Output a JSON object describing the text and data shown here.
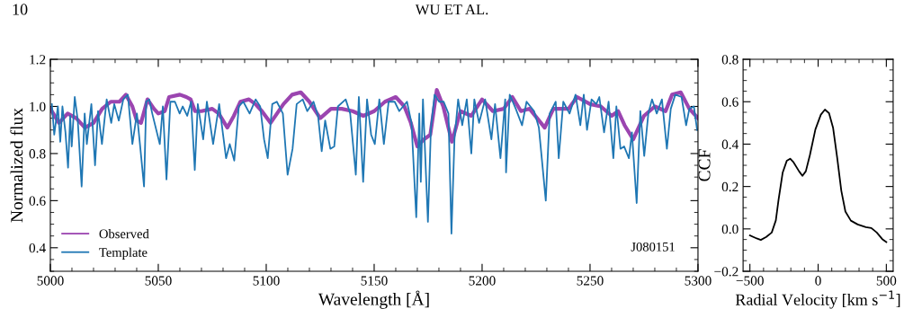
{
  "chart_data": [
    {
      "type": "line",
      "xlabel": "Wavelength [Å]",
      "ylabel": "Normalized flux",
      "annotations": [
        "10",
        "WU ET AL.",
        "J080151"
      ],
      "xlim": [
        5000,
        5300
      ],
      "xticks": [
        5000,
        5050,
        5100,
        5150,
        5200,
        5250,
        5300
      ],
      "ylim": [
        0.3,
        1.2
      ],
      "yticks": [
        0.4,
        0.6,
        0.8,
        {
          "value": 1.0,
          "label": "1.0"
        },
        1.2
      ],
      "legend": "bottom left",
      "grid": false,
      "series": [
        {
          "name": "Observed",
          "color": "#9b45b0",
          "x": [
            5000,
            5004,
            5008,
            5012,
            5016,
            5020,
            5024,
            5028,
            5032,
            5035,
            5038,
            5040,
            5042,
            5045,
            5048,
            5050,
            5053,
            5055,
            5060,
            5063,
            5065,
            5067,
            5070,
            5075,
            5078,
            5082,
            5085,
            5088,
            5092,
            5095,
            5098,
            5102,
            5105,
            5108,
            5112,
            5116,
            5120,
            5125,
            5130,
            5135,
            5140,
            5145,
            5150,
            5155,
            5160,
            5164,
            5167,
            5170,
            5173,
            5176,
            5179,
            5182,
            5186,
            5190,
            5195,
            5200,
            5205,
            5210,
            5214,
            5218,
            5222,
            5229,
            5233,
            5240,
            5244,
            5250,
            5255,
            5260,
            5263,
            5266,
            5270,
            5275,
            5280,
            5285,
            5288,
            5292,
            5296,
            5300
          ],
          "values": [
            0.99,
            0.93,
            0.97,
            0.95,
            0.91,
            0.93,
            0.99,
            1.02,
            1.02,
            1.05,
            1.0,
            0.94,
            0.93,
            1.03,
            0.99,
            0.97,
            0.98,
            1.04,
            1.05,
            1.04,
            1.03,
            0.98,
            0.98,
            0.99,
            0.97,
            0.91,
            0.96,
            1.02,
            1.03,
            1.01,
            0.98,
            0.93,
            0.97,
            1.01,
            1.05,
            1.06,
            1.02,
            0.95,
            0.99,
            0.99,
            0.98,
            0.96,
            0.98,
            1.02,
            1.04,
            1.0,
            0.93,
            0.83,
            0.86,
            0.88,
            1.07,
            1.0,
            0.85,
            0.98,
            0.96,
            1.03,
            0.98,
            0.99,
            1.04,
            0.98,
            0.99,
            0.91,
            0.99,
            0.99,
            1.04,
            1.01,
            1.0,
            0.96,
            0.98,
            0.92,
            0.86,
            0.96,
            1.0,
            0.98,
            1.05,
            1.06,
            0.99,
            0.95
          ]
        },
        {
          "name": "Template",
          "color": "#1f77b4",
          "x": [
            5000.7,
            5001.8,
            5003.5,
            5004.6,
            5005.6,
            5007.0,
            5008.2,
            5009.2,
            5009.9,
            5011.3,
            5012.7,
            5014.5,
            5015.9,
            5016.9,
            5019.0,
            5020.7,
            5022.1,
            5023.9,
            5026.1,
            5028.2,
            5029.6,
            5031.7,
            5033.8,
            5035.9,
            5038.0,
            5040.1,
            5041.5,
            5043.4,
            5044.4,
            5045.8,
            5047.2,
            5050.7,
            5052.1,
            5053.8,
            5055.6,
            5057.7,
            5059.9,
            5061.3,
            5063.4,
            5065.2,
            5066.9,
            5068.3,
            5070.8,
            5072.5,
            5075.4,
            5078.2,
            5081.4,
            5083.1,
            5085.2,
            5087.3,
            5089.4,
            5092.3,
            5095.1,
            5097.2,
            5099.0,
            5100.7,
            5102.8,
            5104.9,
            5107.7,
            5109.9,
            5112.2,
            5114.1,
            5116.9,
            5119.0,
            5121.9,
            5124.0,
            5125.7,
            5127.3,
            5129.7,
            5131.5,
            5133.2,
            5136.8,
            5138.9,
            5141.5,
            5142.9,
            5144.9,
            5146.7,
            5148.6,
            5150.3,
            5152.4,
            5154.5,
            5156.7,
            5159.5,
            5161.6,
            5165.2,
            5167.3,
            5169.5,
            5170.9,
            5171.6,
            5172.6,
            5173.7,
            5174.9,
            5176.3,
            5178.0,
            5180.1,
            5182.2,
            5184.4,
            5185.8,
            5187.2,
            5188.9,
            5190.8,
            5192.9,
            5195.0,
            5196.4,
            5198.6,
            5201.4,
            5204.3,
            5206.0,
            5208.5,
            5210.7,
            5211.1,
            5212.8,
            5215.6,
            5218.5,
            5220.6,
            5224.1,
            5226.3,
            5229.5,
            5231.3,
            5234.1,
            5235.5,
            5237.6,
            5240.5,
            5243.3,
            5245.5,
            5247.1,
            5248.6,
            5250.7,
            5252.9,
            5254.3,
            5256.5,
            5258.6,
            5260.8,
            5262.2,
            5264.1,
            5265.8,
            5268.0,
            5269.4,
            5271.6,
            5273.3,
            5275.1,
            5277.0,
            5278.7,
            5280.9,
            5283.3,
            5285.6,
            5287.4,
            5289.5,
            5292.4,
            5294.5,
            5296.0,
            5298.1,
            5299.6
          ],
          "values": [
            1.01,
            0.88,
            1.0,
            0.85,
            1.0,
            0.89,
            0.74,
            0.96,
            0.83,
            1.04,
            0.94,
            0.66,
            0.97,
            0.84,
            1.01,
            0.75,
            0.98,
            0.84,
            1.03,
            0.93,
            1.01,
            0.94,
            1.03,
            1.05,
            0.84,
            0.97,
            0.84,
            0.66,
            1.02,
            1.03,
            0.97,
            0.84,
            1.0,
            0.69,
            1.02,
            1.02,
            0.97,
            1.0,
            0.96,
            1.02,
            0.73,
            1.01,
            0.86,
            1.02,
            0.84,
            1.01,
            0.78,
            0.84,
            0.77,
            1.0,
            1.02,
            0.97,
            1.03,
            1.0,
            0.86,
            0.78,
            1.01,
            1.02,
            0.97,
            0.71,
            0.82,
            1.01,
            1.03,
            0.98,
            1.02,
            0.96,
            0.81,
            0.94,
            0.82,
            0.83,
            1.0,
            1.03,
            0.97,
            0.71,
            1.04,
            0.68,
            1.03,
            0.88,
            0.84,
            1.03,
            0.84,
            1.02,
            1.02,
            0.98,
            1.02,
            0.93,
            0.53,
            0.97,
            0.68,
            1.03,
            0.78,
            0.51,
            0.91,
            1.05,
            1.02,
            1.02,
            0.97,
            0.46,
            0.86,
            1.03,
            0.92,
            1.03,
            0.8,
            1.03,
            0.93,
            1.03,
            0.86,
            1.01,
            0.78,
            1.03,
            0.72,
            1.05,
            0.99,
            0.92,
            1.02,
            0.98,
            0.91,
            0.6,
            0.97,
            1.02,
            0.78,
            1.02,
            0.97,
            1.05,
            0.92,
            1.05,
            0.9,
            1.03,
            1.01,
            1.04,
            0.89,
            1.02,
            0.78,
            1.0,
            0.82,
            0.83,
            0.78,
            0.89,
            0.59,
            0.98,
            0.79,
            0.97,
            1.03,
            0.97,
            1.03,
            0.82,
            0.99,
            1.05,
            1.04,
            0.92,
            0.99,
            1.0,
            0.9
          ]
        }
      ]
    },
    {
      "type": "line",
      "xlabel": "Radial Velocity [km s$^{−1}$]",
      "ylabel": "CCF",
      "xlim": [
        -550,
        550
      ],
      "xticks": [
        {
          "value": -500,
          "label": "−500"
        },
        0,
        500
      ],
      "ylim": [
        -0.2,
        0.8
      ],
      "yticks": [
        {
          "value": -0.2,
          "label": "−0.2"
        },
        {
          "value": 0,
          "label": "0.0"
        },
        0.2,
        0.4,
        0.6,
        0.8
      ],
      "grid": false,
      "series": [
        {
          "color": "#000000",
          "x": [
            -500,
            -450,
            -420,
            -380,
            -340,
            -310,
            -290,
            -260,
            -230,
            -205,
            -180,
            -140,
            -115,
            -90,
            -60,
            -20,
            20,
            50,
            80,
            110,
            140,
            170,
            200,
            240,
            290,
            350,
            390,
            430,
            470,
            500
          ],
          "values": [
            -0.031,
            -0.045,
            -0.052,
            -0.038,
            -0.017,
            0.04,
            0.138,
            0.265,
            0.321,
            0.331,
            0.314,
            0.272,
            0.25,
            0.272,
            0.349,
            0.469,
            0.539,
            0.563,
            0.546,
            0.476,
            0.335,
            0.18,
            0.082,
            0.039,
            0.021,
            0.008,
            0.004,
            -0.017,
            -0.048,
            -0.062
          ]
        }
      ]
    }
  ]
}
